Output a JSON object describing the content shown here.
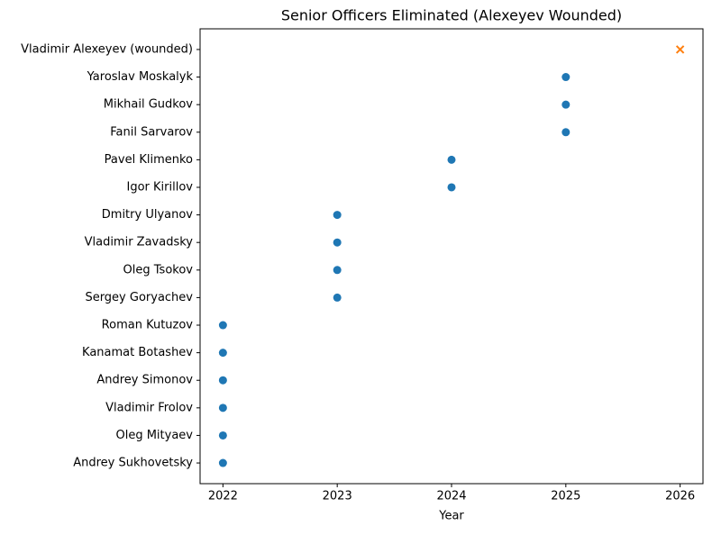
{
  "chart_data": {
    "type": "scatter",
    "title": "Senior Officers Eliminated (Alexeyev Wounded)",
    "x_label": "Year",
    "categories": [
      "Andrey Sukhovetsky",
      "Oleg Mityaev",
      "Vladimir Frolov",
      "Andrey Simonov",
      "Kanamat Botashev",
      "Roman Kutuzov",
      "Sergey Goryachev",
      "Oleg Tsokov",
      "Vladimir Zavadsky",
      "Dmitry Ulyanov",
      "Igor Kirillov",
      "Pavel Klimenko",
      "Fanil Sarvarov",
      "Mikhail Gudkov",
      "Yaroslav Moskalyk",
      "Vladimir Alexeyev (wounded)"
    ],
    "series": [
      {
        "color": "#1f77b4",
        "marker": "o",
        "values": [
          2022,
          2022,
          2022,
          2022,
          2022,
          2022,
          2023,
          2023,
          2023,
          2023,
          2024,
          2024,
          2025,
          2025,
          2025,
          null
        ]
      },
      {
        "color": "#ff7f0e",
        "marker": "x",
        "values": [
          null,
          null,
          null,
          null,
          null,
          null,
          null,
          null,
          null,
          null,
          null,
          null,
          null,
          null,
          null,
          2026
        ]
      }
    ],
    "xlim": [
      2021.8,
      2026.2
    ],
    "xticks": [
      2022,
      2023,
      2024,
      2025,
      2026
    ],
    "grid": false
  }
}
